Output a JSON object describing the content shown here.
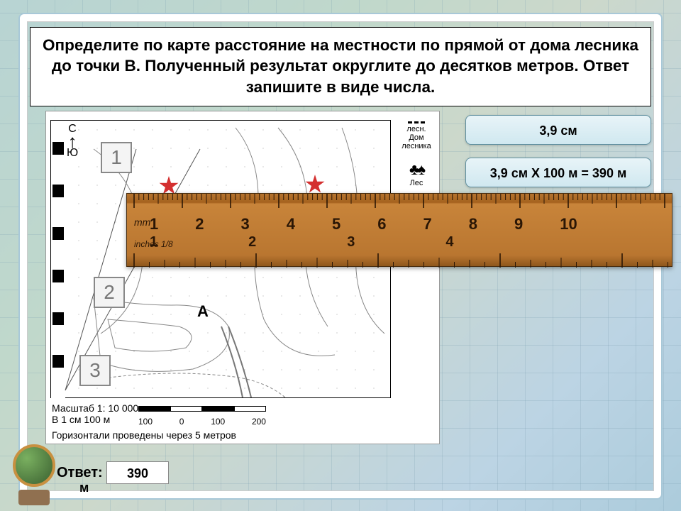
{
  "question": "Определите по карте расстояние на местности по прямой от дома лесника до точки В. Полученный результат округлите до десятков метров. Ответ запишите в виде числа.",
  "compass": {
    "north": "С",
    "south": "Ю"
  },
  "map_numbers": [
    "1",
    "2",
    "3"
  ],
  "point_A": "А",
  "legend": {
    "forester_abbr": "лесн.",
    "forester": "Дом лесника",
    "forest": "Лес"
  },
  "scale": {
    "title": "Масштаб  1: 10 000",
    "cm_line": "В 1 см 100 м",
    "contours": "Горизонтали проведены через 5 метров",
    "bar_labels": [
      "100",
      "0",
      "100",
      "200"
    ]
  },
  "ruler": {
    "mm_label": "mm",
    "in_label": "inches 1/8",
    "top_nums": [
      "1",
      "2",
      "3",
      "4",
      "5",
      "6",
      "7",
      "8",
      "9",
      "10"
    ],
    "bot_nums": [
      "1",
      "2",
      "3",
      "4"
    ],
    "color": "#b5732e",
    "tick_color": "#2a1605"
  },
  "info1": "3,9 см",
  "info2": "3,9 см Х 100 м = 390 м",
  "answer_label": "Ответ:",
  "answer_unit": "м",
  "answer_value": "390",
  "palette": {
    "frame": "#ffffff",
    "star": "#d43030",
    "box_bg": "#e0f0f4",
    "box_border": "#6090a0"
  }
}
